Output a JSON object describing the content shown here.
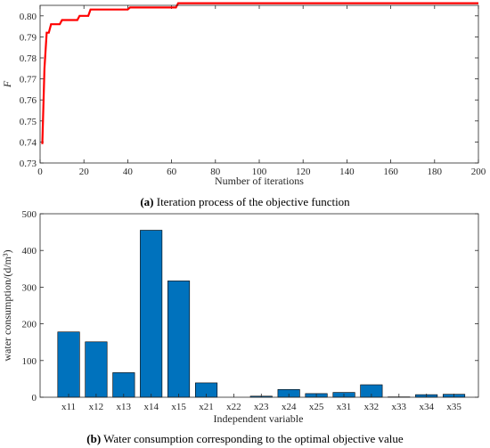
{
  "colors": {
    "line": "#ff0000",
    "bar": "#0072bd",
    "bar_edge": "#000000",
    "axis": "#262626"
  },
  "chart_data": [
    {
      "type": "line",
      "title": "",
      "caption_prefix": "(a)",
      "caption_text": " Iteration process of the objective function",
      "xlabel": "Number of iterations",
      "ylabel": "F",
      "xlim": [
        0,
        200
      ],
      "ylim": [
        0.73,
        0.805
      ],
      "xticks": [
        0,
        20,
        40,
        60,
        80,
        100,
        120,
        140,
        160,
        180,
        200
      ],
      "yticks": [
        0.73,
        0.74,
        0.75,
        0.76,
        0.77,
        0.78,
        0.79,
        0.8
      ],
      "grid": false,
      "series": [
        {
          "x": [
            1,
            2,
            3,
            4,
            5,
            6,
            7,
            8,
            9,
            10,
            11,
            12,
            17,
            18,
            22,
            23,
            24,
            40,
            41,
            62,
            63,
            200
          ],
          "y": [
            0.739,
            0.775,
            0.792,
            0.792,
            0.796,
            0.796,
            0.796,
            0.796,
            0.796,
            0.798,
            0.798,
            0.798,
            0.798,
            0.8,
            0.8,
            0.803,
            0.803,
            0.803,
            0.804,
            0.804,
            0.806,
            0.806
          ]
        }
      ]
    },
    {
      "type": "bar",
      "title": "",
      "caption_prefix": "(b)",
      "caption_text": " Water consumption corresponding to the optimal objective value",
      "xlabel": "Independent variable",
      "ylabel": "water consumption/(d/m³)",
      "ylim": [
        0,
        500
      ],
      "yticks": [
        0,
        100,
        200,
        300,
        400,
        500
      ],
      "grid": false,
      "categories": [
        "x11",
        "x12",
        "x13",
        "x14",
        "x15",
        "x21",
        "x22",
        "x23",
        "x24",
        "x25",
        "x31",
        "x32",
        "x33",
        "x34",
        "x35"
      ],
      "values": [
        178,
        151,
        67,
        455,
        317,
        39,
        0,
        3,
        21,
        10,
        13,
        34,
        1,
        7,
        8
      ]
    }
  ]
}
